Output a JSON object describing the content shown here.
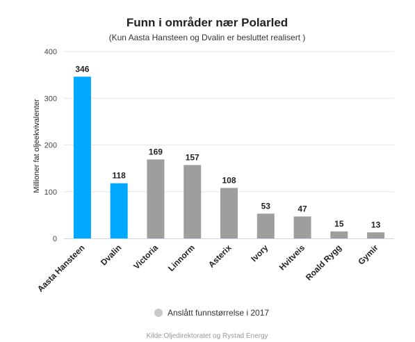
{
  "chart_data": {
    "type": "bar",
    "title": "Funn i områder nær Polarled",
    "subtitle": "(Kun Aasta Hansteen og Dvalin er besluttet realisert )",
    "ylabel": "Millioner fat oljeekvivalenter",
    "xlabel": "",
    "ylim": [
      0,
      400
    ],
    "yticks": [
      0,
      100,
      200,
      300,
      400
    ],
    "grid": true,
    "categories": [
      "Aasta Hansteen",
      "Dvalin",
      "Victoria",
      "Linnorm",
      "Asterix",
      "Ivory",
      "Hvitveis",
      "Roald Rygg",
      "Gymir"
    ],
    "values": [
      346,
      118,
      169,
      157,
      108,
      53,
      47,
      15,
      13
    ],
    "colors": [
      "#00a8ff",
      "#00a8ff",
      "#9e9e9e",
      "#9e9e9e",
      "#9e9e9e",
      "#9e9e9e",
      "#9e9e9e",
      "#9e9e9e",
      "#9e9e9e"
    ],
    "legend": {
      "position": "bottom",
      "label": "Anslått funnstørrelse i 2017",
      "color": "#c8c8c8"
    },
    "credit": "Kilde:Oljedirektoratet og Rystad Energy"
  }
}
